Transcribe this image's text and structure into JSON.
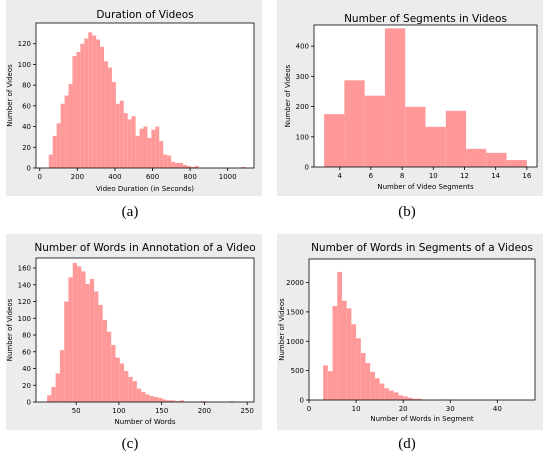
{
  "captions": [
    "(a)",
    "(b)",
    "(c)",
    "(d)"
  ],
  "style": {
    "bar_color": "#ff9999",
    "frame_bg": "#ececec",
    "axes_bg": "#ffffff"
  },
  "chart_data": [
    {
      "type": "bar",
      "title": "Duration of Videos",
      "xlabel": "Video Duration (in Seconds)",
      "ylabel": "Number of Videos",
      "xlim": [
        -20,
        1140
      ],
      "ylim": [
        0,
        140
      ],
      "xticks": [
        0,
        200,
        400,
        600,
        800,
        1000
      ],
      "yticks": [
        0,
        20,
        40,
        60,
        80,
        100,
        120
      ],
      "bin_edges": [
        48,
        69,
        90,
        111,
        132,
        153,
        174,
        195,
        216,
        237,
        258,
        279,
        300,
        321,
        342,
        363,
        384,
        405,
        426,
        447,
        468,
        489,
        510,
        531,
        552,
        573,
        594,
        615,
        636,
        657,
        678,
        699,
        720,
        741,
        762,
        783,
        804,
        825,
        846
      ],
      "values": [
        13,
        31,
        43,
        62,
        70,
        81,
        108,
        112,
        120,
        125,
        131,
        128,
        124,
        117,
        103,
        97,
        83,
        62,
        65,
        53,
        47,
        50,
        31,
        38,
        40,
        29,
        37,
        40,
        26,
        13,
        12,
        6,
        5,
        5,
        3,
        2,
        1,
        2
      ],
      "extra_bars": [
        {
          "x0": 1073,
          "x1": 1094,
          "value": 1
        }
      ]
    },
    {
      "type": "bar",
      "title": "Number of Segments in Videos",
      "xlabel": "Number of Video Segments",
      "ylabel": "Number of Videos",
      "xlim": [
        2.35,
        16.65
      ],
      "ylim": [
        0,
        470
      ],
      "xticks": [
        4,
        6,
        8,
        10,
        12,
        14,
        16
      ],
      "yticks": [
        0,
        100,
        200,
        300,
        400
      ],
      "bin_edges": [
        3.0,
        4.3,
        5.6,
        6.9,
        8.2,
        9.5,
        10.8,
        12.1,
        13.4,
        14.7,
        16.0
      ],
      "values": [
        175,
        287,
        236,
        459,
        199,
        133,
        186,
        60,
        47,
        23
      ]
    },
    {
      "type": "bar",
      "title": "Number of Words in Annotation of a Video",
      "xlabel": "Number of Words",
      "ylabel": "Number of Videos",
      "xlim": [
        3,
        258
      ],
      "ylim": [
        0,
        172
      ],
      "xticks": [
        50,
        100,
        150,
        200,
        250
      ],
      "yticks": [
        0,
        20,
        40,
        60,
        80,
        100,
        120,
        140,
        160
      ],
      "bin_edges": [
        16,
        21,
        26,
        31,
        36,
        41,
        46,
        51,
        56,
        61,
        66,
        71,
        76,
        81,
        86,
        91,
        96,
        101,
        106,
        111,
        116,
        121,
        126,
        131,
        136,
        141,
        146,
        151,
        156,
        161,
        166,
        171,
        176
      ],
      "values": [
        8,
        18,
        34,
        62,
        120,
        149,
        166,
        162,
        156,
        141,
        147,
        132,
        116,
        98,
        84,
        68,
        53,
        46,
        37,
        30,
        25,
        16,
        12,
        9,
        7,
        6,
        5,
        3,
        2,
        2,
        1,
        2
      ],
      "extra_bars": [
        {
          "x0": 196,
          "x1": 201,
          "value": 1
        },
        {
          "x0": 229,
          "x1": 234,
          "value": 1
        }
      ]
    },
    {
      "type": "bar",
      "title": "Number of Words in Segments of a Videos",
      "xlabel": "Number of Words in Segment",
      "ylabel": "Number of Videos",
      "xlim": [
        0,
        48
      ],
      "ylim": [
        0,
        2400
      ],
      "xticks": [
        0,
        10,
        20,
        30,
        40
      ],
      "yticks": [
        0,
        500,
        1000,
        1500,
        2000
      ],
      "bin_edges": [
        3,
        4,
        5,
        6,
        7,
        8,
        9,
        10,
        11,
        12,
        13,
        14,
        15,
        16,
        17,
        18,
        19,
        20,
        21,
        22,
        23,
        24
      ],
      "values": [
        590,
        490,
        1600,
        2180,
        1690,
        1560,
        1290,
        1050,
        800,
        630,
        480,
        370,
        280,
        200,
        160,
        130,
        80,
        60,
        40,
        20,
        20
      ],
      "extra_bars": [
        {
          "x0": 29,
          "x1": 30,
          "value": 10
        }
      ]
    }
  ]
}
